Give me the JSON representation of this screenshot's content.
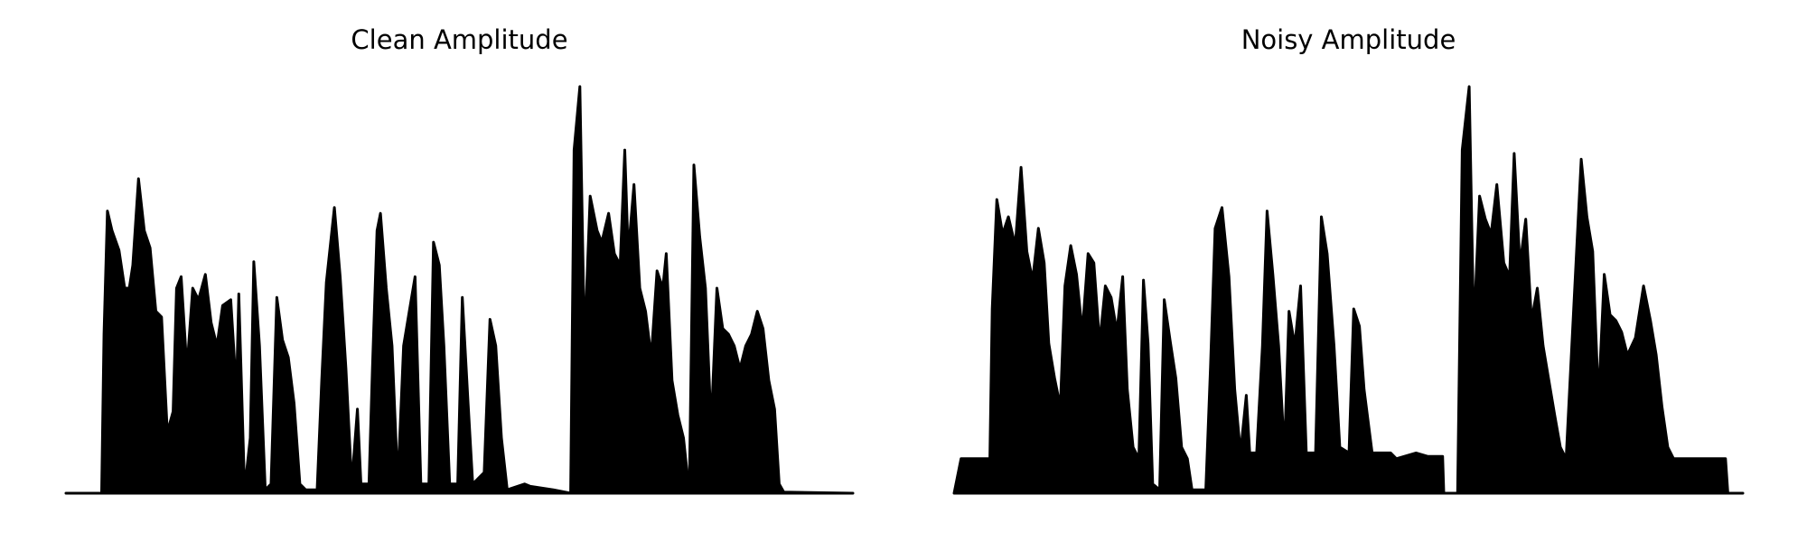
{
  "chart_data": [
    {
      "type": "area",
      "title": "Clean Amplitude",
      "color": "#000000",
      "xlim": [
        0,
        683
      ],
      "ylim": [
        0,
        360
      ],
      "x": [
        0,
        31,
        33,
        36,
        40,
        46,
        51,
        55,
        58,
        63,
        68,
        73,
        78,
        83,
        88,
        93,
        96,
        100,
        105,
        110,
        115,
        121,
        126,
        131,
        136,
        143,
        148,
        150,
        155,
        160,
        163,
        168,
        173,
        178,
        183,
        188,
        193,
        198,
        203,
        208,
        218,
        222,
        226,
        233,
        238,
        243,
        248,
        253,
        256,
        263,
        266,
        270,
        273,
        278,
        283,
        288,
        293,
        298,
        303,
        308,
        315,
        319,
        324,
        328,
        333,
        340,
        344,
        349,
        353,
        363,
        368,
        373,
        378,
        383,
        398,
        403,
        423,
        438,
        441,
        446,
        450,
        455,
        461,
        465,
        471,
        476,
        481,
        485,
        488,
        493,
        498,
        503,
        508,
        513,
        518,
        521,
        526,
        531,
        536,
        541,
        545,
        550,
        555,
        560,
        565,
        570,
        575,
        580,
        585,
        590,
        595,
        600,
        605,
        610,
        615,
        619,
        623,
        683
      ],
      "values": [
        0,
        0,
        138,
        245,
        228,
        211,
        178,
        178,
        198,
        273,
        228,
        213,
        158,
        153,
        53,
        71,
        178,
        188,
        108,
        178,
        168,
        190,
        148,
        128,
        163,
        168,
        88,
        173,
        3,
        48,
        201,
        128,
        3,
        8,
        170,
        133,
        118,
        78,
        8,
        3,
        3,
        98,
        183,
        248,
        188,
        108,
        8,
        73,
        8,
        8,
        108,
        228,
        243,
        178,
        128,
        8,
        128,
        158,
        188,
        8,
        8,
        218,
        198,
        128,
        8,
        8,
        170,
        78,
        8,
        18,
        151,
        128,
        48,
        3,
        8,
        6,
        3,
        0,
        298,
        353,
        128,
        258,
        228,
        218,
        243,
        208,
        198,
        298,
        208,
        268,
        178,
        158,
        118,
        193,
        178,
        208,
        98,
        68,
        48,
        0,
        285,
        223,
        178,
        58,
        178,
        143,
        138,
        128,
        108,
        128,
        138,
        158,
        143,
        98,
        73,
        8,
        1,
        0
      ]
    },
    {
      "type": "area",
      "title": "Noisy Amplitude",
      "color": "#000000",
      "xlim": [
        0,
        683
      ],
      "ylim": [
        0,
        360
      ],
      "x": [
        0,
        6,
        31,
        33,
        37,
        42,
        47,
        53,
        58,
        63,
        68,
        73,
        78,
        82,
        87,
        92,
        96,
        101,
        106,
        111,
        116,
        121,
        126,
        131,
        136,
        141,
        146,
        150,
        155,
        160,
        164,
        168,
        172,
        178,
        182,
        187,
        192,
        197,
        202,
        206,
        218,
        222,
        226,
        232,
        238,
        243,
        248,
        253,
        256,
        262,
        267,
        271,
        276,
        281,
        286,
        290,
        295,
        300,
        305,
        313,
        318,
        323,
        329,
        334,
        342,
        346,
        351,
        355,
        362,
        378,
        383,
        400,
        410,
        423,
        424,
        436,
        440,
        446,
        450,
        455,
        460,
        465,
        470,
        476,
        481,
        485,
        490,
        495,
        500,
        505,
        510,
        515,
        520,
        525,
        530,
        543,
        548,
        553,
        558,
        563,
        568,
        573,
        578,
        583,
        590,
        597,
        603,
        608,
        613,
        618,
        623,
        668,
        670,
        683
      ],
      "values": [
        0,
        30,
        30,
        160,
        255,
        225,
        240,
        215,
        283,
        210,
        185,
        230,
        200,
        130,
        100,
        75,
        180,
        215,
        190,
        140,
        208,
        200,
        130,
        180,
        170,
        140,
        188,
        90,
        40,
        30,
        185,
        130,
        8,
        3,
        168,
        133,
        100,
        40,
        30,
        3,
        3,
        110,
        230,
        248,
        188,
        90,
        35,
        85,
        35,
        35,
        128,
        245,
        190,
        128,
        35,
        158,
        128,
        180,
        35,
        35,
        240,
        208,
        128,
        40,
        35,
        160,
        145,
        90,
        35,
        35,
        30,
        35,
        32,
        32,
        0,
        0,
        298,
        353,
        140,
        258,
        238,
        225,
        268,
        200,
        188,
        295,
        198,
        238,
        150,
        178,
        128,
        98,
        68,
        40,
        30,
        290,
        240,
        210,
        80,
        190,
        155,
        150,
        140,
        120,
        135,
        180,
        150,
        120,
        75,
        40,
        30,
        30,
        0,
        0
      ]
    }
  ]
}
